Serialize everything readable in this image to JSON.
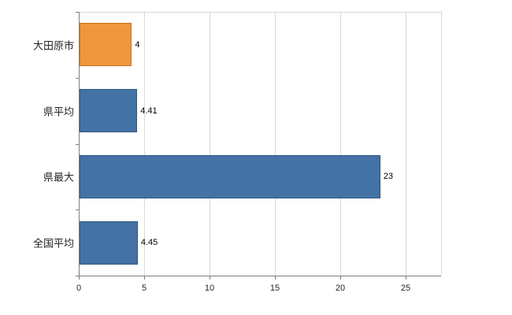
{
  "chart_data": {
    "type": "bar",
    "orientation": "horizontal",
    "title": "",
    "xlabel": "",
    "ylabel": "",
    "categories": [
      "大田原市",
      "県平均",
      "県最大",
      "全国平均"
    ],
    "values": [
      4,
      4.41,
      23,
      4.45
    ],
    "value_labels": [
      "4",
      "4.41",
      "23",
      "4.45"
    ],
    "bar_colors": [
      "#F0963C",
      "#4472A4",
      "#4472A4",
      "#4472A4"
    ],
    "bar_border_colors": [
      "#c8731f",
      "#2f5782",
      "#2f5782",
      "#2f5782"
    ],
    "xticks": [
      0,
      5,
      10,
      15,
      20,
      25
    ],
    "xtick_labels": [
      "0",
      "5",
      "10",
      "15",
      "20",
      "25"
    ],
    "xlim": [
      0,
      25
    ],
    "grid": "vertical-light",
    "legend": "none",
    "colors": {
      "axis": "#808080",
      "gridline": "#d9d9d9",
      "background": "#ffffff",
      "orange": "#F0963C",
      "blue": "#4472A4"
    }
  }
}
